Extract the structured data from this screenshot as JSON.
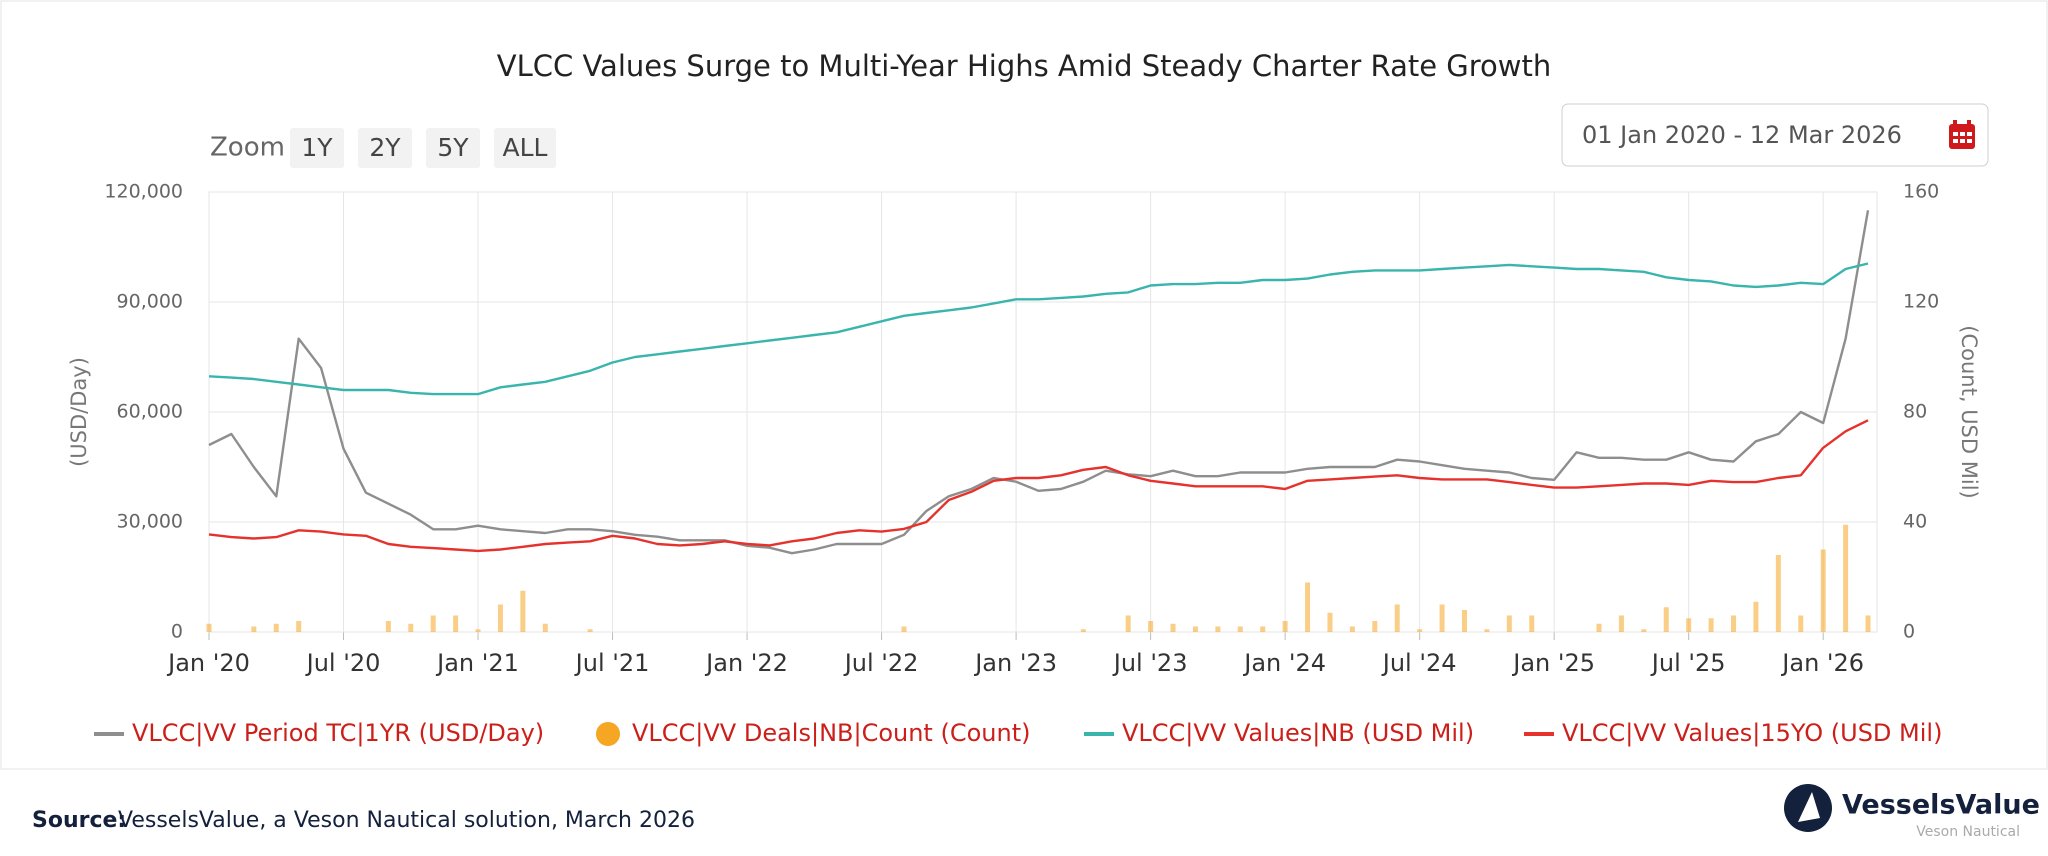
{
  "chart_data": {
    "type": "line",
    "title": "VLCC Values Surge to Multi-Year Highs Amid Steady Charter Rate Growth",
    "zoom_label": "Zoom",
    "zoom_buttons": [
      "1Y",
      "2Y",
      "5Y",
      "ALL"
    ],
    "date_range": "01 Jan 2020 - 12 Mar 2026",
    "y_label": "(USD/Day)",
    "y2_label": "(Count, USD Mil)",
    "grid": true,
    "x": [
      "2020-01",
      "2020-02",
      "2020-03",
      "2020-04",
      "2020-05",
      "2020-06",
      "2020-07",
      "2020-08",
      "2020-09",
      "2020-10",
      "2020-11",
      "2020-12",
      "2021-01",
      "2021-02",
      "2021-03",
      "2021-04",
      "2021-05",
      "2021-06",
      "2021-07",
      "2021-08",
      "2021-09",
      "2021-10",
      "2021-11",
      "2021-12",
      "2022-01",
      "2022-02",
      "2022-03",
      "2022-04",
      "2022-05",
      "2022-06",
      "2022-07",
      "2022-08",
      "2022-09",
      "2022-10",
      "2022-11",
      "2022-12",
      "2023-01",
      "2023-02",
      "2023-03",
      "2023-04",
      "2023-05",
      "2023-06",
      "2023-07",
      "2023-08",
      "2023-09",
      "2023-10",
      "2023-11",
      "2023-12",
      "2024-01",
      "2024-02",
      "2024-03",
      "2024-04",
      "2024-05",
      "2024-06",
      "2024-07",
      "2024-08",
      "2024-09",
      "2024-10",
      "2024-11",
      "2024-12",
      "2025-01",
      "2025-02",
      "2025-03",
      "2025-04",
      "2025-05",
      "2025-06",
      "2025-07",
      "2025-08",
      "2025-09",
      "2025-10",
      "2025-11",
      "2025-12",
      "2026-01",
      "2026-02",
      "2026-03"
    ],
    "xlim": [
      "2020-01",
      "2026-03"
    ],
    "xticks": [
      {
        "value": "2020-01",
        "label": "Jan '20"
      },
      {
        "value": "2020-07",
        "label": "Jul '20"
      },
      {
        "value": "2021-01",
        "label": "Jan '21"
      },
      {
        "value": "2021-07",
        "label": "Jul '21"
      },
      {
        "value": "2022-01",
        "label": "Jan '22"
      },
      {
        "value": "2022-07",
        "label": "Jul '22"
      },
      {
        "value": "2023-01",
        "label": "Jan '23"
      },
      {
        "value": "2023-07",
        "label": "Jul '23"
      },
      {
        "value": "2024-01",
        "label": "Jan '24"
      },
      {
        "value": "2024-07",
        "label": "Jul '24"
      },
      {
        "value": "2025-01",
        "label": "Jan '25"
      },
      {
        "value": "2025-07",
        "label": "Jul '25"
      },
      {
        "value": "2026-01",
        "label": "Jan '26"
      }
    ],
    "ylim": [
      0,
      120000
    ],
    "yticks": [
      0,
      {
        "value": 30000,
        "label": "30,000"
      },
      {
        "value": 60000,
        "label": "60,000"
      },
      {
        "value": 90000,
        "label": "90,000"
      },
      {
        "value": 120000,
        "label": "120,000"
      }
    ],
    "y2lim": [
      0,
      160
    ],
    "y2ticks": [
      0,
      40,
      80,
      120,
      160
    ],
    "series": [
      {
        "name": "VLCC|VV Period TC|1YR (USD/Day)",
        "color": "#8e8e8e",
        "type": "line",
        "values": [
          51000,
          54000,
          45000,
          37000,
          80000,
          72000,
          50000,
          38000,
          35000,
          32000,
          28000,
          28000,
          29000,
          28000,
          27500,
          27000,
          28000,
          28000,
          27500,
          26500,
          26000,
          25000,
          25000,
          25000,
          23500,
          23000,
          21500,
          22500,
          24000,
          24000,
          24000,
          26500,
          33000,
          37000,
          39000,
          42000,
          41000,
          38500,
          39000,
          41000,
          44000,
          43000,
          42500,
          44000,
          42500,
          42500,
          43500,
          43500,
          43500,
          44500,
          45000,
          45000,
          45000,
          47000,
          46500,
          45500,
          44500,
          44000,
          43500,
          42000,
          41500,
          49000,
          47500,
          47500,
          47000,
          47000,
          49000,
          47000,
          46500,
          52000,
          54000,
          60000,
          57000,
          80000,
          115000
        ]
      },
      {
        "name": "VLCC|VV Deals|NB|Count (Count)",
        "color": "#f5a623",
        "type": "bar",
        "axis": "y2",
        "values": [
          3,
          0,
          2,
          3,
          4,
          0,
          0,
          0,
          4,
          3,
          6,
          6,
          1,
          10,
          15,
          3,
          0,
          1,
          0,
          0,
          0,
          0,
          0,
          0,
          0,
          0,
          0,
          0,
          0,
          0,
          0,
          2,
          0,
          0,
          0,
          0,
          0,
          0,
          0,
          1,
          0,
          6,
          4,
          3,
          2,
          2,
          2,
          2,
          4,
          18,
          7,
          2,
          4,
          10,
          1,
          10,
          8,
          1,
          6,
          6,
          0,
          0,
          3,
          6,
          1,
          9,
          5,
          5,
          6,
          11,
          28,
          6,
          30,
          39,
          6
        ]
      },
      {
        "name": "VLCC|VV Values|NB (USD Mil)",
        "color": "#3ab5ad",
        "type": "line",
        "axis": "y2",
        "values": [
          93,
          92.5,
          92,
          91,
          90,
          89,
          88,
          88,
          88,
          87,
          86.5,
          86.5,
          86.5,
          89,
          90,
          91,
          93,
          95,
          98,
          100,
          101,
          102,
          103,
          104,
          105,
          106,
          107,
          108,
          109,
          111,
          113,
          115,
          116,
          117,
          118,
          119.5,
          121,
          121,
          121.5,
          122,
          123,
          123.5,
          126,
          126.5,
          126.5,
          127,
          127,
          128,
          128,
          128.5,
          130,
          131,
          131.5,
          131.5,
          131.5,
          132,
          132.5,
          133,
          133.5,
          133,
          132.5,
          132,
          132,
          131.5,
          131,
          129,
          128,
          127.5,
          126,
          125.5,
          126,
          127,
          126.5,
          132,
          134
        ]
      },
      {
        "name": "VLCC|VV Values|15YO (USD Mil)",
        "color": "#e5322d",
        "type": "line",
        "axis": "y2",
        "values": [
          35.5,
          34.5,
          34,
          34.5,
          37,
          36.5,
          35.5,
          35,
          32,
          31,
          30.5,
          30,
          29.5,
          30,
          31,
          32,
          32.5,
          33,
          35,
          34,
          32,
          31.5,
          32,
          33,
          32,
          31.5,
          33,
          34,
          36,
          37,
          36.5,
          37.5,
          40,
          48,
          51,
          55,
          56,
          56,
          57,
          59,
          60,
          57,
          55,
          54,
          53,
          53,
          53,
          53,
          52,
          55,
          55.5,
          56,
          56.5,
          57,
          56,
          55.5,
          55.5,
          55.5,
          54.5,
          53.5,
          52.5,
          52.5,
          53,
          53.5,
          54,
          54,
          53.5,
          55,
          54.5,
          54.5,
          56,
          57,
          67,
          73,
          77
        ]
      }
    ],
    "legend_text_color": "#cc1f1a",
    "source_label": "Source:",
    "source_text": "VesselsValue, a Veson Nautical solution, March 2026",
    "logo_name": "VesselsValue",
    "logo_sub": "Veson Nautical"
  }
}
